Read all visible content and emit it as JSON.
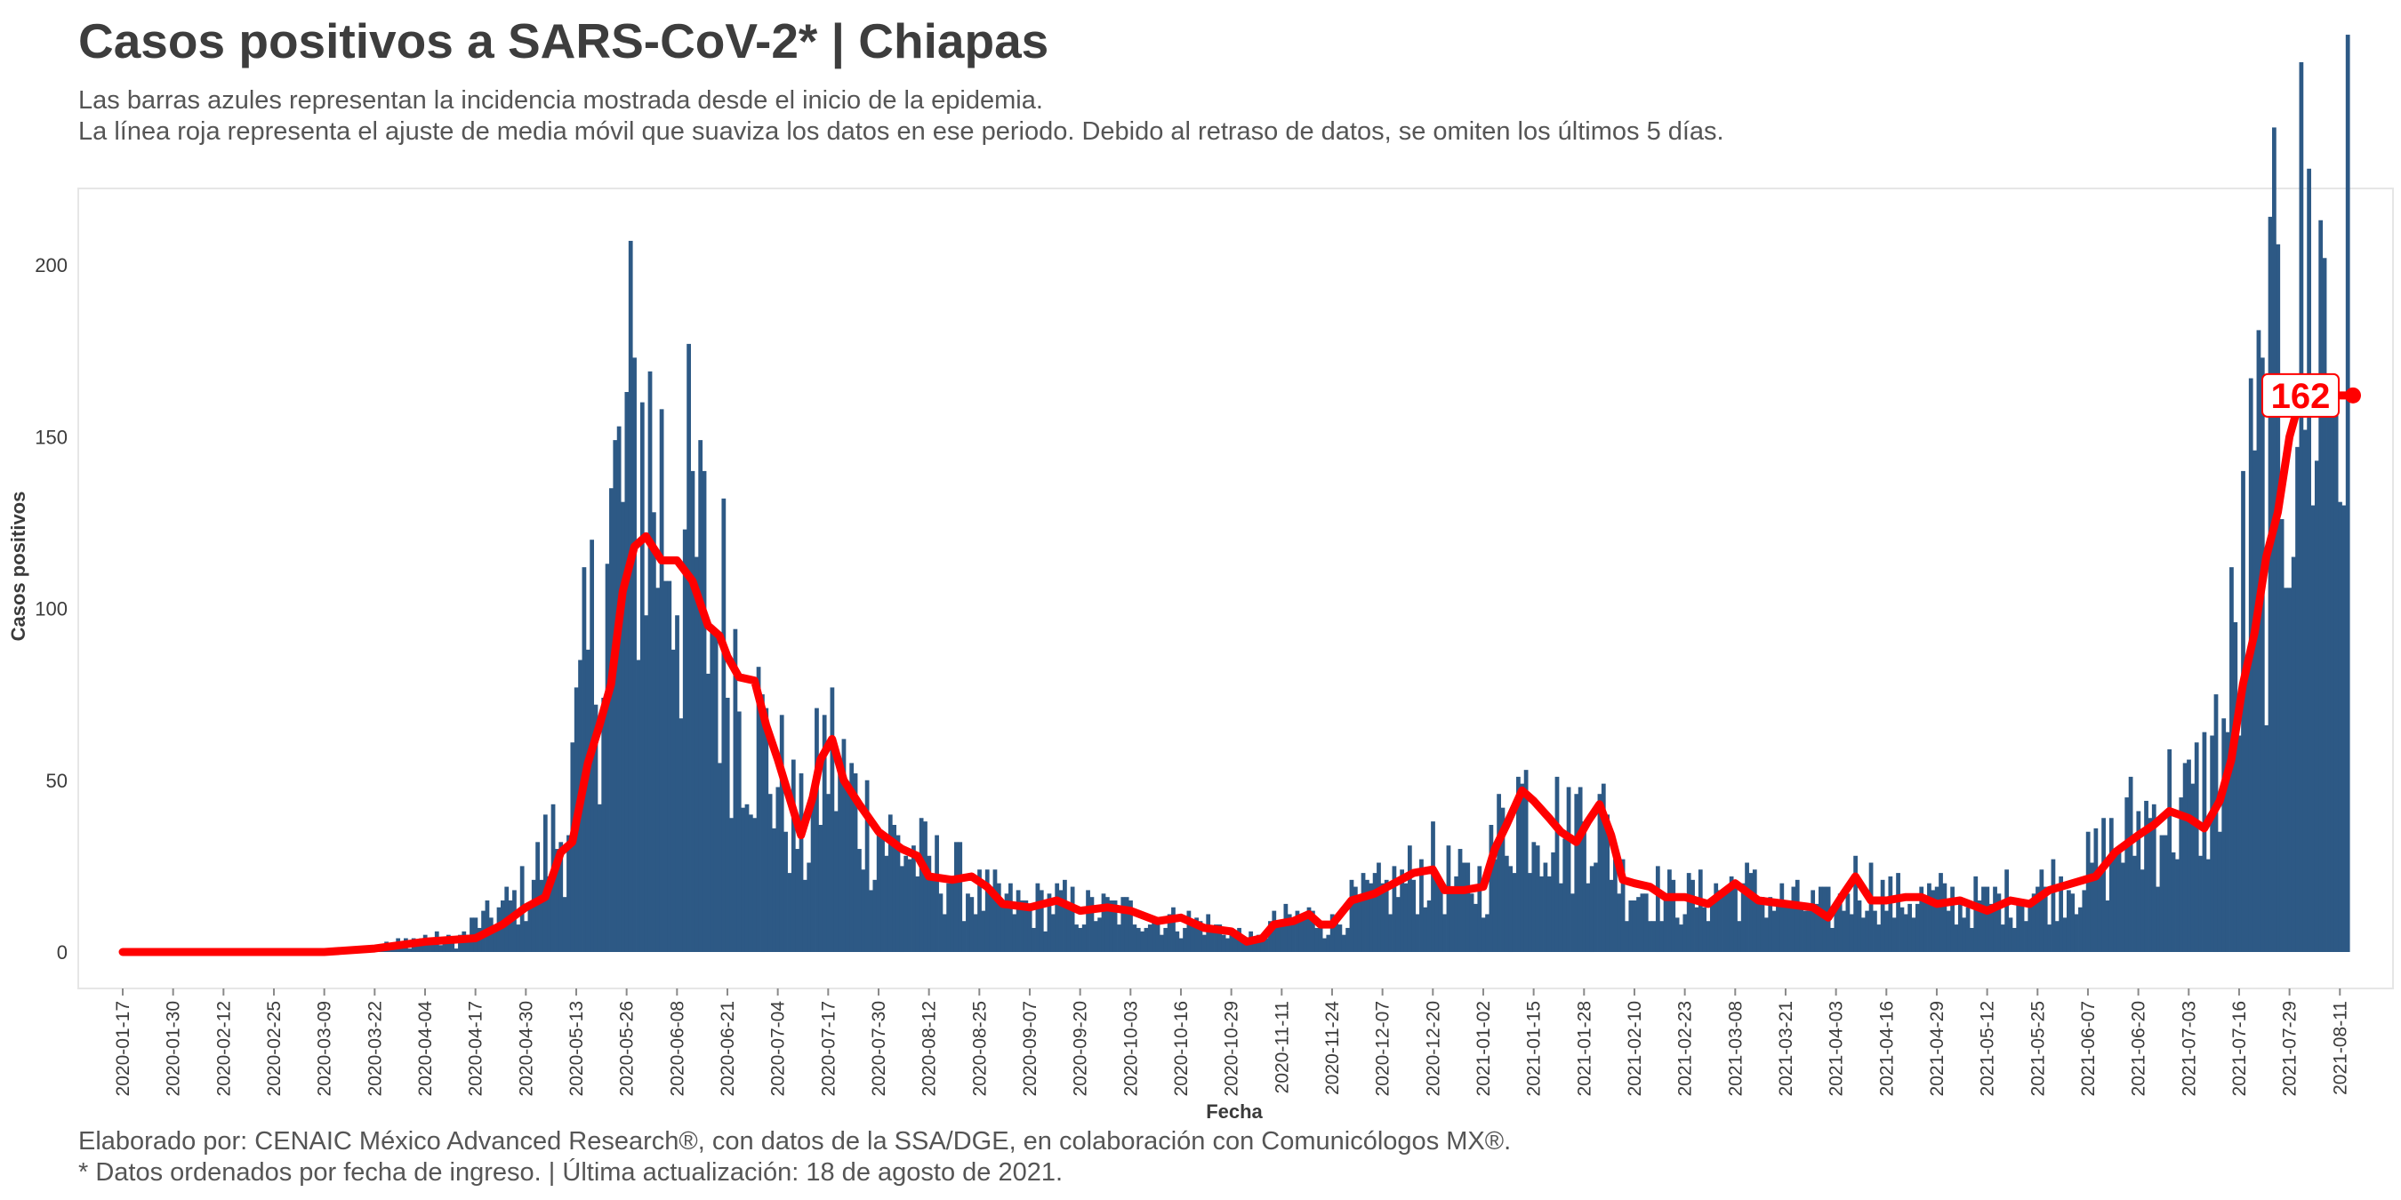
{
  "header": {
    "title": "Casos positivos a SARS-CoV-2* | Chiapas",
    "subtitle_1": "Las barras azules representan la incidencia mostrada desde el inicio de la epidemia.",
    "subtitle_2": "La línea roja representa el ajuste de media móvil que suaviza los datos en ese periodo. Debido al retraso de datos, se omiten los últimos 5 días."
  },
  "footer": {
    "caption_1": "Elaborado por: CENAIC México Advanced Research®, con datos de la SSA/DGE, en colaboración con Comunicólogos MX®.",
    "caption_2": "* Datos ordenados por fecha de ingreso. | Última actualización: 18 de agosto de 2021."
  },
  "colors": {
    "bars": "#2d5985",
    "line": "#ff0000",
    "panel_border": "#e6e6e6",
    "text": "#3b3b3b"
  },
  "chart_data": {
    "type": "bar",
    "xlabel": "Fecha",
    "ylabel": "Casos positivos",
    "ylim": [
      -10,
      215
    ],
    "yticks": [
      0,
      50,
      100,
      150,
      200
    ],
    "x_start": "2020-01-17",
    "x_end": "2021-08-13",
    "xticks": [
      "2020-01-17",
      "2020-01-30",
      "2020-02-12",
      "2020-02-25",
      "2020-03-09",
      "2020-03-22",
      "2020-04-04",
      "2020-04-17",
      "2020-04-30",
      "2020-05-13",
      "2020-05-26",
      "2020-06-08",
      "2020-06-21",
      "2020-07-04",
      "2020-07-17",
      "2020-07-30",
      "2020-08-12",
      "2020-08-25",
      "2020-09-07",
      "2020-09-20",
      "2020-10-03",
      "2020-10-16",
      "2020-10-29",
      "2020-11-11",
      "2020-11-24",
      "2020-12-07",
      "2020-12-20",
      "2021-01-02",
      "2021-01-15",
      "2021-01-28",
      "2021-02-10",
      "2021-02-23",
      "2021-03-08",
      "2021-03-21",
      "2021-04-03",
      "2021-04-16",
      "2021-04-29",
      "2021-05-12",
      "2021-05-25",
      "2021-06-07",
      "2021-06-20",
      "2021-07-03",
      "2021-07-16",
      "2021-07-29",
      "2021-08-11"
    ],
    "bars_anchors": [
      [
        "2020-01-17",
        0
      ],
      [
        "2020-03-18",
        0
      ],
      [
        "2020-03-22",
        1
      ],
      [
        "2020-04-04",
        4
      ],
      [
        "2020-04-12",
        3
      ],
      [
        "2020-04-17",
        8
      ],
      [
        "2020-04-24",
        12
      ],
      [
        "2020-04-30",
        17
      ],
      [
        "2020-05-06",
        30
      ],
      [
        "2020-05-10",
        35
      ],
      [
        "2020-05-13",
        55
      ],
      [
        "2020-05-16",
        78
      ],
      [
        "2020-05-20",
        100
      ],
      [
        "2020-05-23",
        120
      ],
      [
        "2020-05-26",
        135
      ],
      [
        "2020-05-30",
        145
      ],
      [
        "2020-06-03",
        130
      ],
      [
        "2020-06-08",
        118
      ],
      [
        "2020-06-13",
        110
      ],
      [
        "2020-06-17",
        95
      ],
      [
        "2020-06-21",
        88
      ],
      [
        "2020-06-25",
        75
      ],
      [
        "2020-06-29",
        62
      ],
      [
        "2020-07-04",
        48
      ],
      [
        "2020-07-08",
        38
      ],
      [
        "2020-07-11",
        30
      ],
      [
        "2020-07-14",
        45
      ],
      [
        "2020-07-17",
        58
      ],
      [
        "2020-07-20",
        50
      ],
      [
        "2020-07-25",
        40
      ],
      [
        "2020-07-30",
        34
      ],
      [
        "2020-08-05",
        30
      ],
      [
        "2020-08-12",
        24
      ],
      [
        "2020-08-18",
        22
      ],
      [
        "2020-08-25",
        16
      ],
      [
        "2020-09-01",
        14
      ],
      [
        "2020-09-07",
        13
      ],
      [
        "2020-09-14",
        14
      ],
      [
        "2020-09-20",
        12
      ],
      [
        "2020-09-27",
        12
      ],
      [
        "2020-10-03",
        11
      ],
      [
        "2020-10-10",
        9
      ],
      [
        "2020-10-16",
        9
      ],
      [
        "2020-10-22",
        8
      ],
      [
        "2020-10-29",
        6
      ],
      [
        "2020-11-04",
        3
      ],
      [
        "2020-11-08",
        7
      ],
      [
        "2020-11-11",
        9
      ],
      [
        "2020-11-18",
        10
      ],
      [
        "2020-11-24",
        8
      ],
      [
        "2020-11-30",
        14
      ],
      [
        "2020-12-07",
        17
      ],
      [
        "2020-12-13",
        20
      ],
      [
        "2020-12-20",
        24
      ],
      [
        "2020-12-26",
        19
      ],
      [
        "2021-01-02",
        20
      ],
      [
        "2021-01-07",
        35
      ],
      [
        "2021-01-11",
        45
      ],
      [
        "2021-01-15",
        42
      ],
      [
        "2021-01-20",
        37
      ],
      [
        "2021-01-24",
        32
      ],
      [
        "2021-01-29",
        43
      ],
      [
        "2021-02-03",
        33
      ],
      [
        "2021-02-07",
        20
      ],
      [
        "2021-02-12",
        18
      ],
      [
        "2021-02-18",
        16
      ],
      [
        "2021-02-23",
        15
      ],
      [
        "2021-03-01",
        16
      ],
      [
        "2021-03-08",
        19
      ],
      [
        "2021-03-15",
        16
      ],
      [
        "2021-03-21",
        14
      ],
      [
        "2021-03-28",
        13
      ],
      [
        "2021-04-03",
        12
      ],
      [
        "2021-04-08",
        20
      ],
      [
        "2021-04-13",
        18
      ],
      [
        "2021-04-16",
        15
      ],
      [
        "2021-04-23",
        15
      ],
      [
        "2021-04-29",
        15
      ],
      [
        "2021-05-06",
        14
      ],
      [
        "2021-05-12",
        14
      ],
      [
        "2021-05-19",
        16
      ],
      [
        "2021-05-25",
        17
      ],
      [
        "2021-06-01",
        20
      ],
      [
        "2021-06-07",
        22
      ],
      [
        "2021-06-14",
        30
      ],
      [
        "2021-06-20",
        36
      ],
      [
        "2021-06-27",
        42
      ],
      [
        "2021-07-03",
        40
      ],
      [
        "2021-07-08",
        48
      ],
      [
        "2021-07-12",
        62
      ],
      [
        "2021-07-16",
        90
      ],
      [
        "2021-07-20",
        120
      ],
      [
        "2021-07-24",
        145
      ],
      [
        "2021-07-28",
        165
      ],
      [
        "2021-08-01",
        175
      ],
      [
        "2021-08-05",
        185
      ],
      [
        "2021-08-09",
        170
      ],
      [
        "2021-08-13",
        175
      ]
    ],
    "moving_average": [
      [
        "2020-01-17",
        0
      ],
      [
        "2020-02-25",
        0
      ],
      [
        "2020-03-09",
        0
      ],
      [
        "2020-03-22",
        1
      ],
      [
        "2020-04-04",
        3
      ],
      [
        "2020-04-17",
        4
      ],
      [
        "2020-04-24",
        8
      ],
      [
        "2020-04-30",
        13
      ],
      [
        "2020-05-05",
        16
      ],
      [
        "2020-05-09",
        29
      ],
      [
        "2020-05-12",
        32
      ],
      [
        "2020-05-16",
        55
      ],
      [
        "2020-05-19",
        66
      ],
      [
        "2020-05-22",
        78
      ],
      [
        "2020-05-25",
        105
      ],
      [
        "2020-05-28",
        118
      ],
      [
        "2020-05-31",
        121
      ],
      [
        "2020-06-04",
        114
      ],
      [
        "2020-06-08",
        114
      ],
      [
        "2020-06-12",
        108
      ],
      [
        "2020-06-16",
        95
      ],
      [
        "2020-06-19",
        92
      ],
      [
        "2020-06-21",
        86
      ],
      [
        "2020-06-24",
        80
      ],
      [
        "2020-06-28",
        79
      ],
      [
        "2020-07-01",
        66
      ],
      [
        "2020-07-04",
        56
      ],
      [
        "2020-07-07",
        45
      ],
      [
        "2020-07-10",
        34
      ],
      [
        "2020-07-13",
        45
      ],
      [
        "2020-07-15",
        56
      ],
      [
        "2020-07-18",
        62
      ],
      [
        "2020-07-21",
        50
      ],
      [
        "2020-07-25",
        43
      ],
      [
        "2020-07-30",
        35
      ],
      [
        "2020-08-05",
        30
      ],
      [
        "2020-08-09",
        28
      ],
      [
        "2020-08-12",
        22
      ],
      [
        "2020-08-18",
        21
      ],
      [
        "2020-08-23",
        22
      ],
      [
        "2020-08-27",
        19
      ],
      [
        "2020-08-31",
        14
      ],
      [
        "2020-09-07",
        13
      ],
      [
        "2020-09-14",
        15
      ],
      [
        "2020-09-20",
        12
      ],
      [
        "2020-09-27",
        13
      ],
      [
        "2020-10-03",
        12
      ],
      [
        "2020-10-10",
        9
      ],
      [
        "2020-10-16",
        10
      ],
      [
        "2020-10-22",
        7
      ],
      [
        "2020-10-29",
        6
      ],
      [
        "2020-11-02",
        3
      ],
      [
        "2020-11-06",
        4
      ],
      [
        "2020-11-09",
        8
      ],
      [
        "2020-11-14",
        9
      ],
      [
        "2020-11-18",
        11
      ],
      [
        "2020-11-21",
        8
      ],
      [
        "2020-11-24",
        8
      ],
      [
        "2020-11-29",
        15
      ],
      [
        "2020-12-05",
        17
      ],
      [
        "2020-12-10",
        20
      ],
      [
        "2020-12-15",
        23
      ],
      [
        "2020-12-20",
        24
      ],
      [
        "2020-12-23",
        18
      ],
      [
        "2020-12-28",
        18
      ],
      [
        "2021-01-02",
        19
      ],
      [
        "2021-01-05",
        30
      ],
      [
        "2021-01-08",
        37
      ],
      [
        "2021-01-12",
        47
      ],
      [
        "2021-01-15",
        44
      ],
      [
        "2021-01-19",
        39
      ],
      [
        "2021-01-22",
        35
      ],
      [
        "2021-01-26",
        32
      ],
      [
        "2021-01-29",
        38
      ],
      [
        "2021-02-01",
        43
      ],
      [
        "2021-02-04",
        34
      ],
      [
        "2021-02-07",
        21
      ],
      [
        "2021-02-10",
        20
      ],
      [
        "2021-02-14",
        19
      ],
      [
        "2021-02-18",
        16
      ],
      [
        "2021-02-23",
        16
      ],
      [
        "2021-03-01",
        14
      ],
      [
        "2021-03-08",
        20
      ],
      [
        "2021-03-14",
        15
      ],
      [
        "2021-03-21",
        14
      ],
      [
        "2021-03-28",
        13
      ],
      [
        "2021-04-01",
        10
      ],
      [
        "2021-04-05",
        17
      ],
      [
        "2021-04-08",
        22
      ],
      [
        "2021-04-12",
        15
      ],
      [
        "2021-04-16",
        15
      ],
      [
        "2021-04-21",
        16
      ],
      [
        "2021-04-25",
        16
      ],
      [
        "2021-04-29",
        14
      ],
      [
        "2021-05-05",
        15
      ],
      [
        "2021-05-12",
        12
      ],
      [
        "2021-05-18",
        15
      ],
      [
        "2021-05-23",
        14
      ],
      [
        "2021-05-28",
        18
      ],
      [
        "2021-06-03",
        20
      ],
      [
        "2021-06-09",
        22
      ],
      [
        "2021-06-14",
        29
      ],
      [
        "2021-06-20",
        34
      ],
      [
        "2021-06-24",
        37
      ],
      [
        "2021-06-28",
        41
      ],
      [
        "2021-07-03",
        39
      ],
      [
        "2021-07-07",
        36
      ],
      [
        "2021-07-11",
        44
      ],
      [
        "2021-07-14",
        56
      ],
      [
        "2021-07-17",
        78
      ],
      [
        "2021-07-20",
        93
      ],
      [
        "2021-07-23",
        115
      ],
      [
        "2021-07-26",
        128
      ],
      [
        "2021-07-29",
        150
      ],
      [
        "2021-08-01",
        162
      ],
      [
        "2021-08-13",
        162
      ]
    ],
    "annotation": {
      "date": "2021-08-13",
      "value": 162,
      "text": "162"
    }
  }
}
